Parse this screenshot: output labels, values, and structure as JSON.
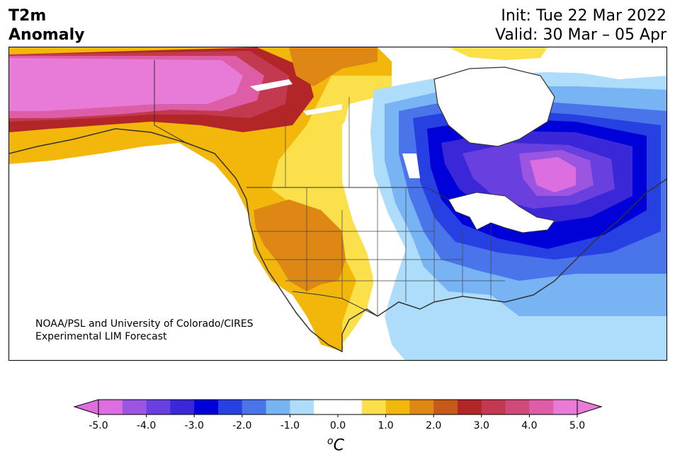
{
  "header": {
    "title_line1": "T2m",
    "title_line2": "Anomaly",
    "init_label": "Init: Tue 22 Mar 2022",
    "valid_label": "Valid: 30 Mar – 05 Apr"
  },
  "credit": {
    "line1": "NOAA/PSL and University of Colorado/CIRES",
    "line2": "Experimental LIM Forecast"
  },
  "colorbar": {
    "unit_sup": "o",
    "unit_main": "C",
    "ticks": [
      "-5.0",
      "-4.0",
      "-3.0",
      "-2.0",
      "-1.0",
      "0.0",
      "1.0",
      "2.0",
      "3.0",
      "4.0",
      "5.0"
    ],
    "colors": [
      "#dc6ee0",
      "#9b55e0",
      "#6a3fdf",
      "#3a27d8",
      "#0000d8",
      "#2740e2",
      "#4a74ea",
      "#78b3f4",
      "#aedcfb",
      "#ffffff",
      "#ffffff",
      "#fbe04c",
      "#f2b70a",
      "#de8714",
      "#c65a1a",
      "#b32628",
      "#c33a50",
      "#cf4a78",
      "#dd5ea6",
      "#e87ad8"
    ],
    "under_color": "#dc6ee0",
    "over_color": "#e87ad8"
  },
  "map": {
    "anomaly_regions": [
      {
        "name": "alaska-warm",
        "value": "5.0",
        "color": "#e87ad8"
      },
      {
        "name": "yukon-warm",
        "value": "3.5",
        "color": "#c33a50"
      },
      {
        "name": "western-warm",
        "value": "1.5",
        "color": "#f2b70a"
      },
      {
        "name": "southwest-warm",
        "value": "2.0",
        "color": "#de8714"
      },
      {
        "name": "plains-neutral",
        "value": "0.0",
        "color": "#ffffff"
      },
      {
        "name": "central-cool",
        "value": "-1.0",
        "color": "#aedcfb"
      },
      {
        "name": "great-lakes-cold",
        "value": "-3.0",
        "color": "#0000d8"
      },
      {
        "name": "quebec-cold",
        "value": "-5.0",
        "color": "#dc6ee0"
      }
    ]
  }
}
